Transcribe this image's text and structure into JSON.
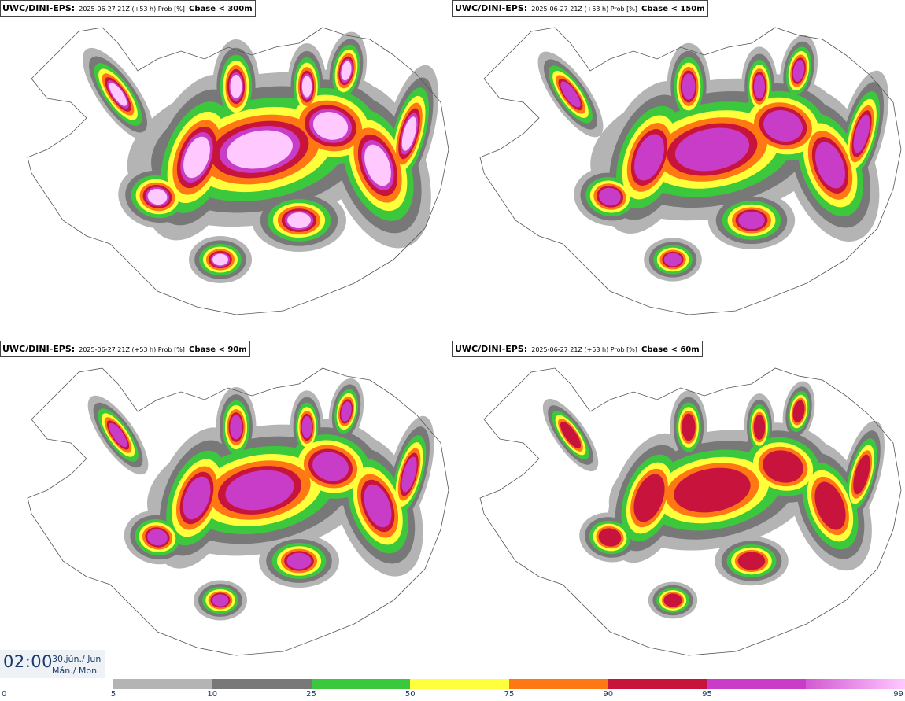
{
  "panels": [
    {
      "model": "UWC/DINI-EPS",
      "meta": "2025-06-27 21Z (+53 h) Prob [%]",
      "param": "Cbase < 300m"
    },
    {
      "model": "UWC/DINI-EPS",
      "meta": "2025-06-27 21Z (+53 h) Prob [%]",
      "param": "Cbase < 150m"
    },
    {
      "model": "UWC/DINI-EPS",
      "meta": "2025-06-27 21Z (+53 h) Prob [%]",
      "param": "Cbase < 90m"
    },
    {
      "model": "UWC/DINI-EPS",
      "meta": "2025-06-27 21Z (+53 h) Prob [%]",
      "param": "Cbase < 60m"
    }
  ],
  "valid_time": {
    "time": "02:00",
    "date_line1": "30.jún./ Jun",
    "date_line2": "Mán./ Mon"
  },
  "colorbar": {
    "ticks": [
      "0",
      "5",
      "10",
      "25",
      "50",
      "75",
      "90",
      "95",
      "99"
    ],
    "colors": [
      "#b4b4b4",
      "#787878",
      "#3cc83c",
      "#ffff3c",
      "#ff7814",
      "#c8143c",
      "#c83cc8",
      "#ffc8ff"
    ]
  }
}
